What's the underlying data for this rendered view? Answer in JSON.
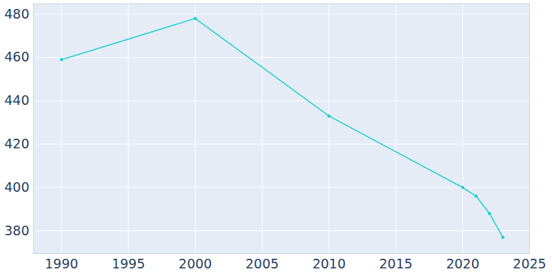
{
  "chart_data": {
    "type": "line",
    "x": [
      1990,
      2000,
      2010,
      2020,
      2021,
      2022,
      2023
    ],
    "values": [
      459,
      478,
      433,
      400,
      396,
      388,
      377
    ],
    "color": "#1fcfcf",
    "marker": "circle",
    "xlim": [
      1987.9,
      2025
    ],
    "xticks": [
      1990,
      1995,
      2000,
      2005,
      2010,
      2015,
      2020,
      2025
    ],
    "ylim": [
      369.5,
      484.8
    ],
    "yticks": [
      380,
      400,
      420,
      440,
      460,
      480
    ],
    "grid": true
  }
}
